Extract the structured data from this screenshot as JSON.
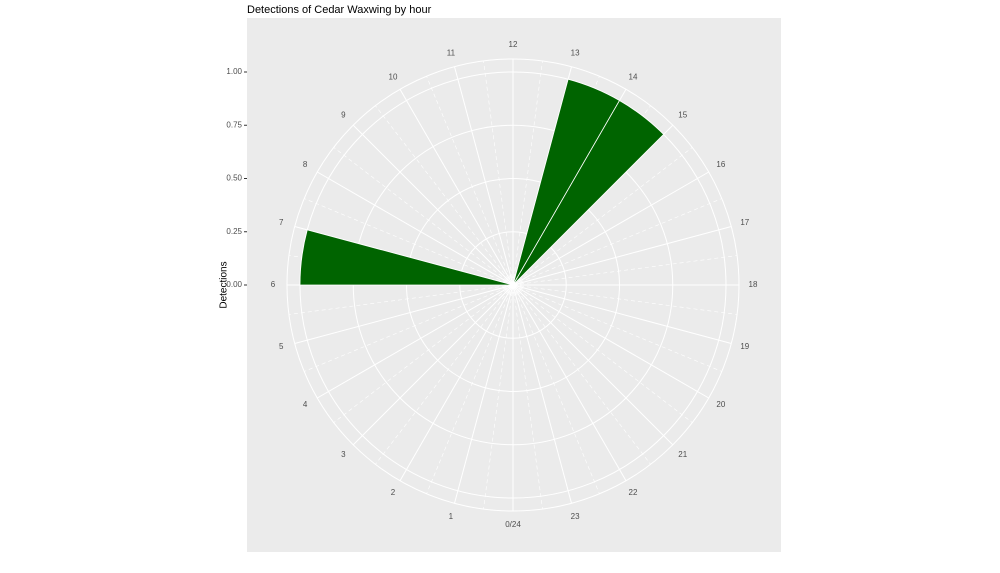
{
  "chart_data": {
    "type": "polar-bar",
    "title": "Detections of Cedar Waxwing by hour",
    "y_label": "Detections",
    "categories": [
      "0/24",
      "1",
      "2",
      "3",
      "4",
      "5",
      "6",
      "7",
      "8",
      "9",
      "10",
      "11",
      "12",
      "13",
      "14",
      "15",
      "16",
      "17",
      "18",
      "19",
      "20",
      "21",
      "22",
      "23"
    ],
    "values": [
      0,
      0,
      0,
      0,
      0,
      0,
      1,
      0,
      0,
      0,
      0,
      0,
      0,
      1,
      1,
      0,
      0,
      0,
      0,
      0,
      0,
      0,
      0,
      0
    ],
    "color": "#006400",
    "ylim": [
      0,
      1
    ],
    "yticks": [
      {
        "value": 0,
        "label": "0.00"
      },
      {
        "value": 0.25,
        "label": "0.25"
      },
      {
        "value": 0.5,
        "label": "0.50"
      },
      {
        "value": 0.75,
        "label": "0.75"
      },
      {
        "value": 1,
        "label": "1.00"
      }
    ],
    "grid": true
  }
}
